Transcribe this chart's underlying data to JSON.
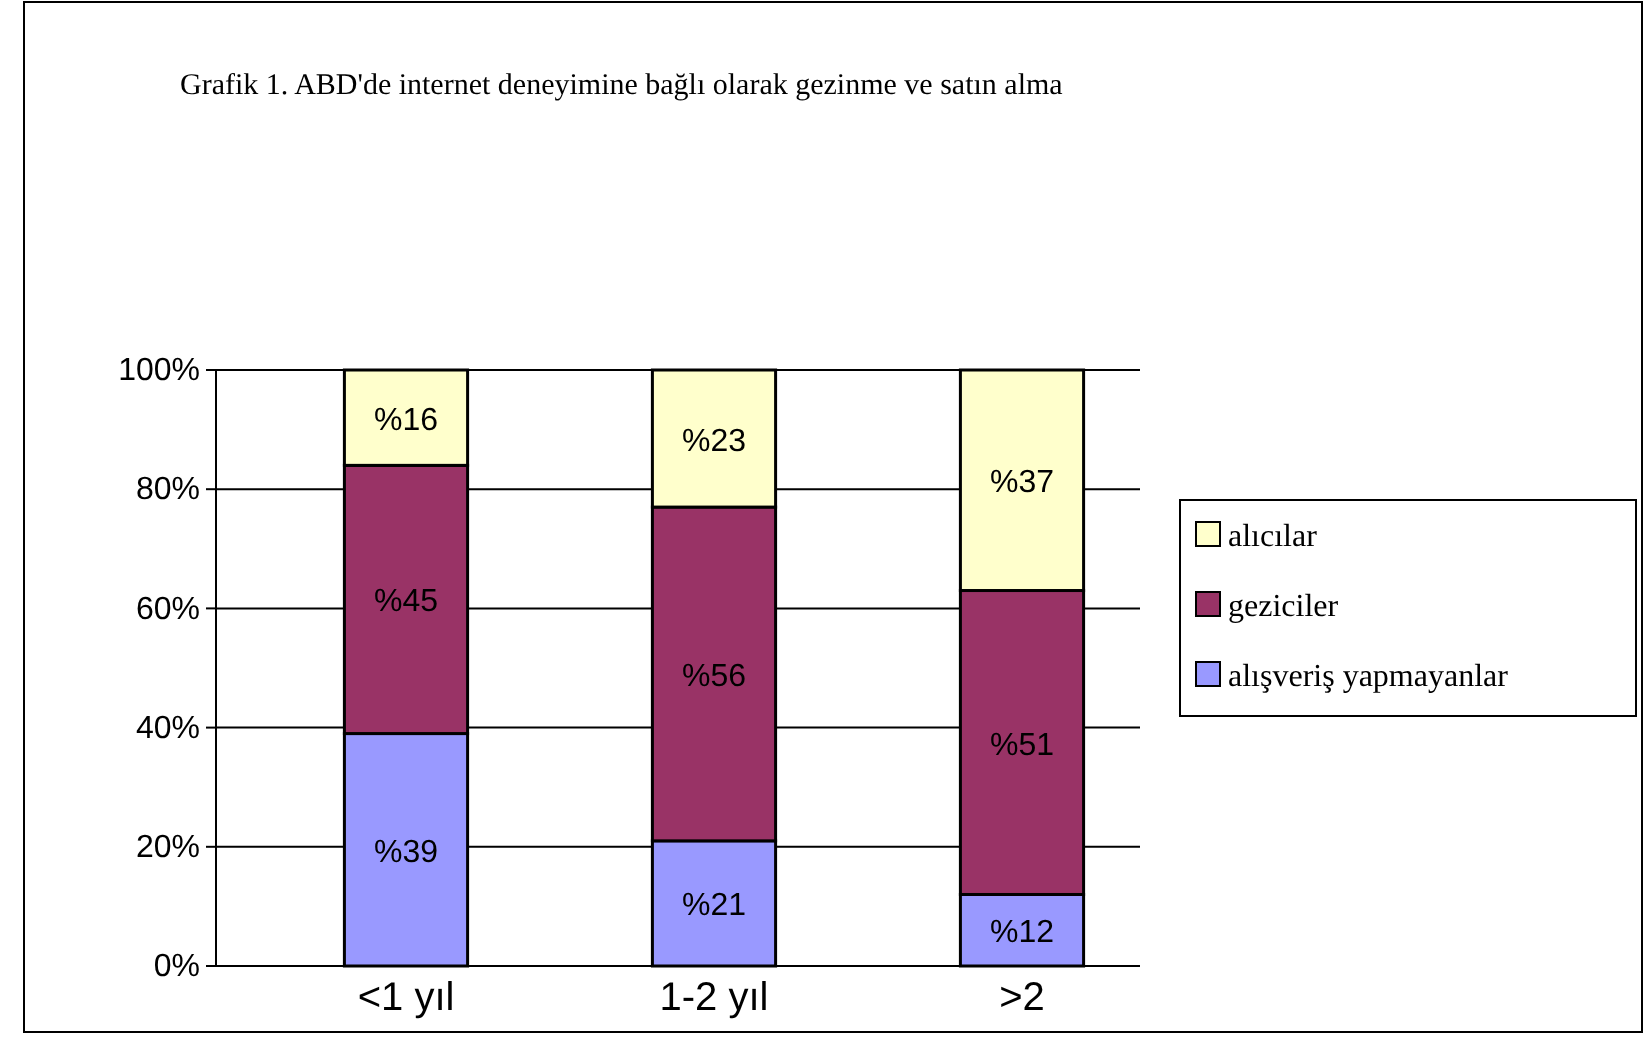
{
  "chart_data": {
    "type": "bar",
    "stacked": true,
    "title": "Grafik 1.  ABD'de internet deneyimine bağlı olarak gezinme ve satın alma",
    "categories": [
      "<1 yıl",
      "1-2 yıl",
      ">2"
    ],
    "series": [
      {
        "name": "alışveriş yapmayanlar",
        "color": "#9999ff",
        "values": [
          39,
          21,
          12
        ],
        "value_labels": [
          "%39",
          "%21",
          "%12"
        ]
      },
      {
        "name": "geziciler",
        "color": "#993366",
        "values": [
          45,
          56,
          51
        ],
        "value_labels": [
          "%45",
          "%56",
          "%51"
        ]
      },
      {
        "name": "alıcılar",
        "color": "#ffffcc",
        "values": [
          16,
          23,
          37
        ],
        "value_labels": [
          "%16",
          "%23",
          "%37"
        ]
      }
    ],
    "ylim": [
      0,
      100
    ],
    "yticks": [
      {
        "value": 0,
        "label": "0%"
      },
      {
        "value": 20,
        "label": "20%"
      },
      {
        "value": 40,
        "label": "40%"
      },
      {
        "value": 60,
        "label": "60%"
      },
      {
        "value": 80,
        "label": "80%"
      },
      {
        "value": 100,
        "label": "100%"
      }
    ],
    "grid": "y",
    "legend": "right"
  }
}
